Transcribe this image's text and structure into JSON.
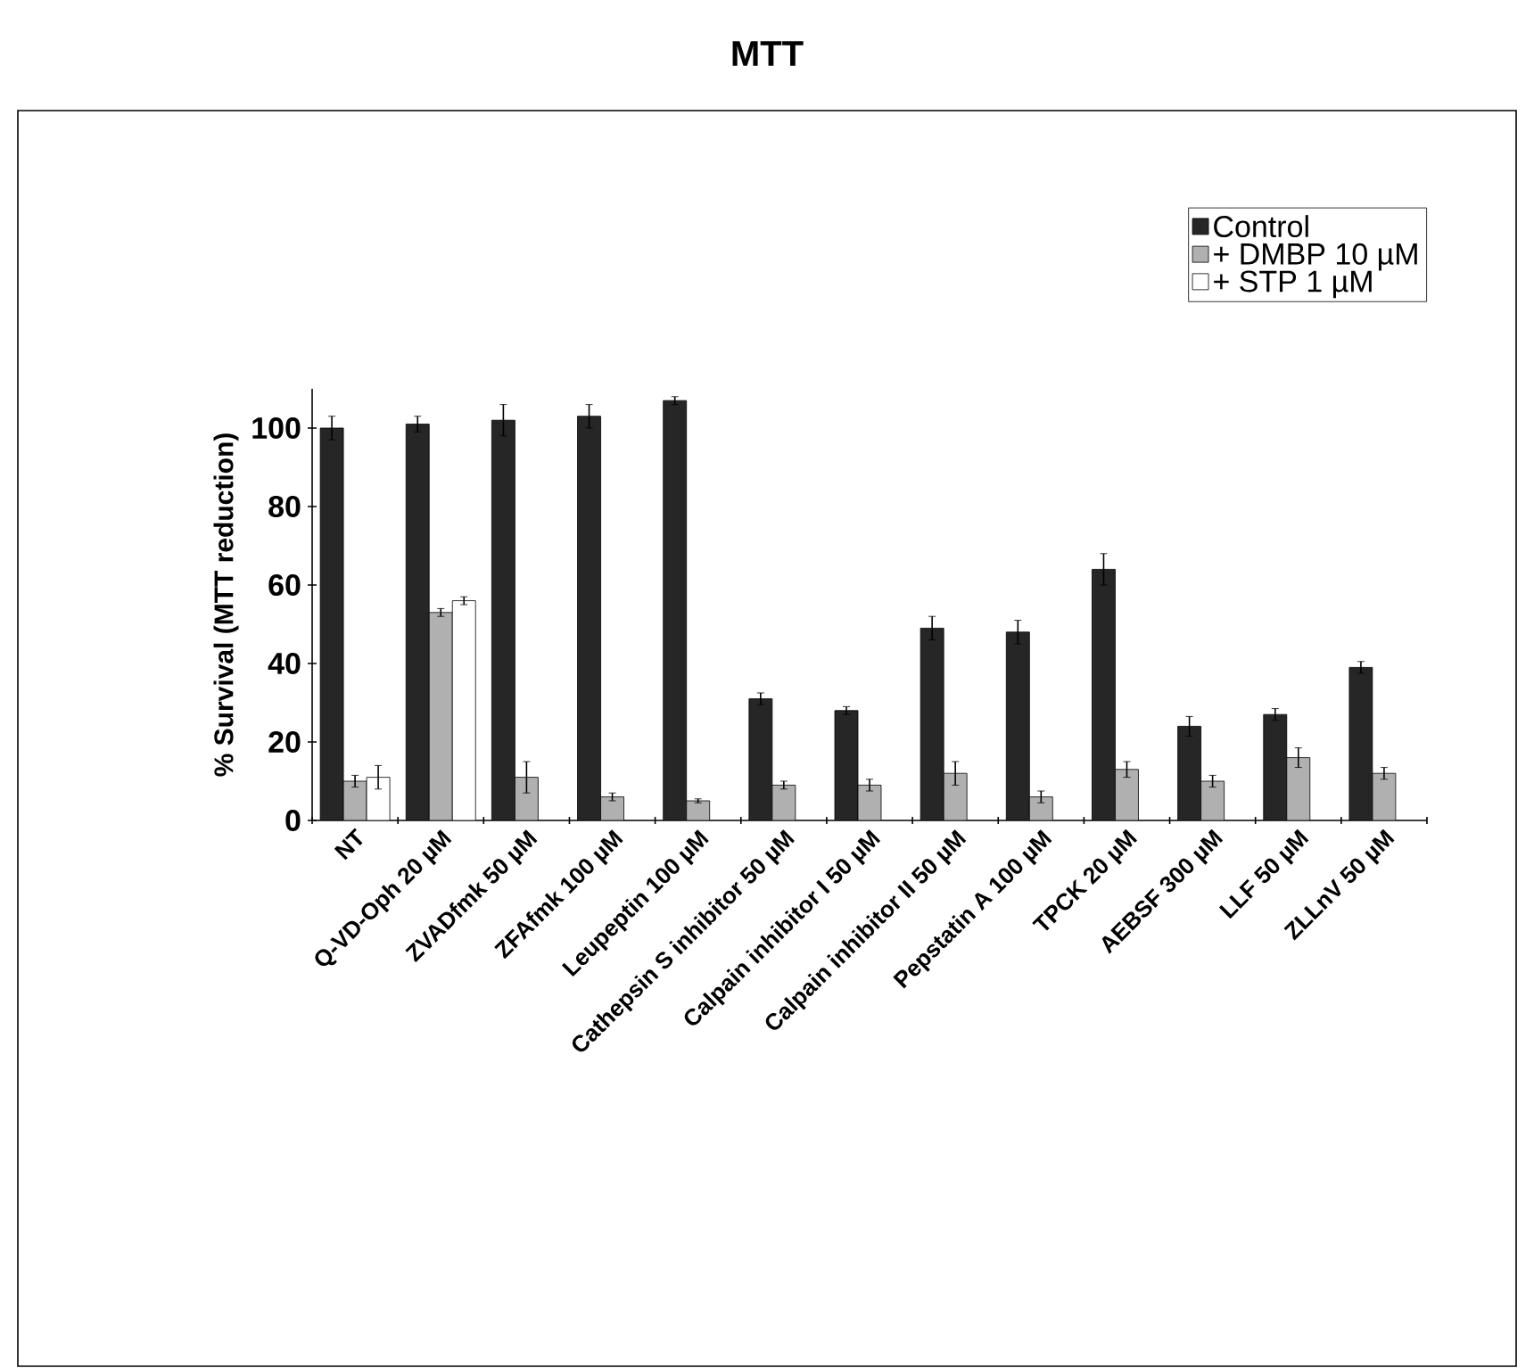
{
  "chart_data": {
    "type": "bar",
    "title": "MTT",
    "ylabel": "% Survival (MTT reduction)",
    "categories": [
      "NT",
      "Q-VD-Oph 20 µM",
      "ZVADfmk 50 µM",
      "ZFAfmk 100 µM",
      "Leupeptin 100 µM",
      "Cathepsin S inhibitor 50 µM",
      "Calpain inhibitor I 50 µM",
      "Calpain inhibitor II 50 µM",
      "Pepstatin A 100 µM",
      "TPCK  20 µM",
      "AEBSF 300 µM",
      "LLF 50 µM",
      "ZLLnV  50 µM"
    ],
    "series": [
      {
        "name": "Control",
        "color": "#262626",
        "values": [
          100,
          101,
          102,
          103,
          107,
          31,
          28,
          49,
          48,
          64,
          24,
          27,
          39
        ],
        "errors": [
          3,
          2,
          4,
          3,
          1,
          1.5,
          1,
          3,
          3,
          4,
          2.5,
          1.5,
          1.5
        ]
      },
      {
        "name": "+ DMBP 10 µM",
        "color": "#b0b0b0",
        "values": [
          10,
          53,
          11,
          6,
          5,
          9,
          9,
          12,
          6,
          13,
          10,
          16,
          12
        ],
        "errors": [
          1.5,
          1,
          4,
          1,
          0.5,
          1,
          1.5,
          3,
          1.5,
          2,
          1.5,
          2.5,
          1.5
        ]
      },
      {
        "name": "+ STP 1 µM",
        "color": "#ffffff",
        "values": [
          11,
          56,
          null,
          null,
          null,
          null,
          null,
          null,
          null,
          null,
          null,
          null,
          null
        ],
        "errors": [
          3,
          1,
          null,
          null,
          null,
          null,
          null,
          null,
          null,
          null,
          null,
          null,
          null
        ]
      }
    ],
    "ylim": [
      0,
      110
    ],
    "yticks": [
      0,
      20,
      40,
      60,
      80,
      100
    ],
    "grid": false,
    "legend": "top right"
  }
}
